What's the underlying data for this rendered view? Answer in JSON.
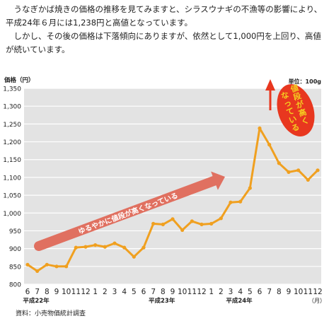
{
  "intro": {
    "paragraph1": "うなぎかば焼きの価格の推移を見てみますと、シラスウナギの不漁等の影響により、平成24年６月には1,238円と高値となっています。",
    "paragraph2": "しかし、その後の価格は下落傾向にありますが、依然として1,000円を上回り、高値が続いています。"
  },
  "chart_data": {
    "type": "line",
    "ylabel": "価格（円）",
    "unit_label": "単位：100g",
    "xlabel": "（月）",
    "source": "資料：小売物価統計調査",
    "ylim": [
      800,
      1350
    ],
    "yticks": [
      "800",
      "850",
      "900",
      "950",
      "1,000",
      "1,050",
      "1,100",
      "1,150",
      "1,200",
      "1,250",
      "1,300",
      "1,350"
    ],
    "ytick_values": [
      800,
      850,
      900,
      950,
      1000,
      1050,
      1100,
      1150,
      1200,
      1250,
      1300,
      1350
    ],
    "x": [
      "6",
      "7",
      "8",
      "9",
      "10",
      "11",
      "12",
      "1",
      "2",
      "3",
      "4",
      "5",
      "6",
      "7",
      "8",
      "9",
      "10",
      "11",
      "12",
      "1",
      "2",
      "3",
      "4",
      "5",
      "6",
      "7",
      "8",
      "9",
      "10",
      "11",
      "12"
    ],
    "year_labels": [
      {
        "text": "平成22年",
        "index": 0
      },
      {
        "text": "平成23年",
        "index": 13
      },
      {
        "text": "平成24年",
        "index": 21
      }
    ],
    "series": [
      {
        "values": [
          855,
          837,
          855,
          850,
          850,
          903,
          905,
          910,
          905,
          915,
          903,
          877,
          903,
          970,
          968,
          983,
          952,
          977,
          968,
          970,
          985,
          1030,
          1032,
          1070,
          1238,
          1192,
          1140,
          1115,
          1120,
          1093,
          1120
        ]
      }
    ],
    "annotations": {
      "rising_arrow": "ゆるやかに値段が高くなっている",
      "callout": [
        "値段が高く",
        "なっている"
      ]
    },
    "colors": {
      "line": "#f0a020",
      "marker": "#f0a020",
      "grid": "#ffffff",
      "plot_bg": "#e3e3e3",
      "arrow": "#e07060",
      "callout": "#e8371f",
      "callout_text": "#f5d020"
    },
    "grid": true
  }
}
